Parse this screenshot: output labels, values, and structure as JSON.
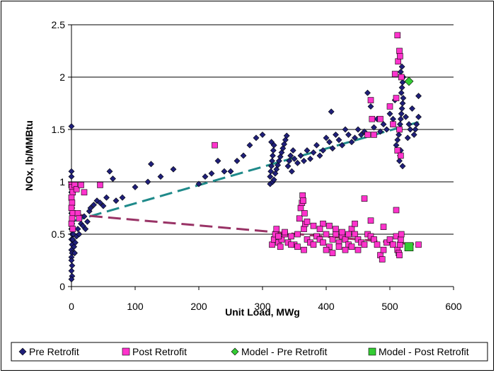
{
  "chart_data": {
    "type": "scatter",
    "title": "",
    "xlabel": "Unit Load, MWg",
    "ylabel": "NOx, lb/MMBtu",
    "xlim": [
      0,
      600
    ],
    "ylim": [
      0,
      2.5
    ],
    "x_ticks": [
      "0",
      "100",
      "200",
      "300",
      "400",
      "500",
      "600"
    ],
    "y_ticks": [
      "0",
      "0.5",
      "1",
      "1.5",
      "2",
      "2.5"
    ],
    "grid": "horizontal",
    "legend_position": "bottom",
    "series": [
      {
        "name": "Pre Retrofit",
        "marker": "diamond",
        "color": "#1f1f7a",
        "points": [
          [
            0,
            1.53
          ],
          [
            0,
            1.1
          ],
          [
            0,
            1.05
          ],
          [
            1,
            0.95
          ],
          [
            0,
            0.9
          ],
          [
            1,
            0.75
          ],
          [
            0,
            0.7
          ],
          [
            1,
            0.6
          ],
          [
            0,
            0.55
          ],
          [
            1,
            0.5
          ],
          [
            0,
            0.45
          ],
          [
            1,
            0.4
          ],
          [
            0,
            0.35
          ],
          [
            1,
            0.32
          ],
          [
            0,
            0.28
          ],
          [
            0,
            0.25
          ],
          [
            1,
            0.2
          ],
          [
            0,
            0.15
          ],
          [
            1,
            0.1
          ],
          [
            0,
            0.07
          ],
          [
            2,
            0.45
          ],
          [
            3,
            0.5
          ],
          [
            4,
            0.38
          ],
          [
            5,
            0.32
          ],
          [
            6,
            0.42
          ],
          [
            8,
            0.48
          ],
          [
            10,
            0.55
          ],
          [
            12,
            0.5
          ],
          [
            15,
            0.6
          ],
          [
            18,
            0.58
          ],
          [
            20,
            0.67
          ],
          [
            22,
            0.55
          ],
          [
            25,
            0.62
          ],
          [
            28,
            0.72
          ],
          [
            30,
            0.75
          ],
          [
            35,
            0.78
          ],
          [
            40,
            0.82
          ],
          [
            45,
            0.8
          ],
          [
            50,
            0.77
          ],
          [
            55,
            0.85
          ],
          [
            60,
            1.1
          ],
          [
            65,
            1.03
          ],
          [
            70,
            0.82
          ],
          [
            80,
            0.85
          ],
          [
            100,
            0.95
          ],
          [
            120,
            1.0
          ],
          [
            125,
            1.17
          ],
          [
            140,
            1.05
          ],
          [
            160,
            1.12
          ],
          [
            200,
            0.98
          ],
          [
            210,
            1.05
          ],
          [
            220,
            1.08
          ],
          [
            230,
            1.2
          ],
          [
            240,
            1.1
          ],
          [
            250,
            1.1
          ],
          [
            260,
            1.2
          ],
          [
            270,
            1.25
          ],
          [
            280,
            1.35
          ],
          [
            290,
            1.42
          ],
          [
            300,
            1.45
          ],
          [
            312,
            0.98
          ],
          [
            312,
            1.05
          ],
          [
            313,
            1.1
          ],
          [
            314,
            1.15
          ],
          [
            315,
            1.2
          ],
          [
            316,
            1.25
          ],
          [
            317,
            1.3
          ],
          [
            318,
            1.35
          ],
          [
            314,
            1.38
          ],
          [
            316,
            1.0
          ],
          [
            318,
            1.02
          ],
          [
            320,
            1.08
          ],
          [
            322,
            1.12
          ],
          [
            324,
            1.16
          ],
          [
            326,
            1.2
          ],
          [
            328,
            1.24
          ],
          [
            330,
            1.28
          ],
          [
            332,
            1.32
          ],
          [
            334,
            1.36
          ],
          [
            336,
            1.4
          ],
          [
            338,
            1.44
          ],
          [
            340,
            1.15
          ],
          [
            342,
            1.2
          ],
          [
            344,
            1.25
          ],
          [
            346,
            1.1
          ],
          [
            348,
            1.3
          ],
          [
            350,
            1.22
          ],
          [
            355,
            1.18
          ],
          [
            360,
            1.25
          ],
          [
            365,
            1.2
          ],
          [
            370,
            1.3
          ],
          [
            375,
            1.22
          ],
          [
            380,
            1.28
          ],
          [
            385,
            1.35
          ],
          [
            390,
            1.25
          ],
          [
            395,
            1.3
          ],
          [
            400,
            1.42
          ],
          [
            405,
            1.38
          ],
          [
            408,
            1.67
          ],
          [
            410,
            1.32
          ],
          [
            415,
            1.45
          ],
          [
            420,
            1.4
          ],
          [
            425,
            1.35
          ],
          [
            430,
            1.5
          ],
          [
            435,
            1.45
          ],
          [
            440,
            1.38
          ],
          [
            445,
            1.42
          ],
          [
            450,
            1.5
          ],
          [
            455,
            1.45
          ],
          [
            460,
            1.48
          ],
          [
            465,
            1.85
          ],
          [
            470,
            1.72
          ],
          [
            475,
            1.52
          ],
          [
            480,
            1.6
          ],
          [
            485,
            1.48
          ],
          [
            490,
            1.55
          ],
          [
            495,
            1.5
          ],
          [
            500,
            1.65
          ],
          [
            505,
            1.6
          ],
          [
            508,
            1.78
          ],
          [
            510,
            1.35
          ],
          [
            512,
            1.4
          ],
          [
            514,
            1.45
          ],
          [
            515,
            1.5
          ],
          [
            516,
            1.55
          ],
          [
            517,
            1.6
          ],
          [
            518,
            1.65
          ],
          [
            519,
            1.7
          ],
          [
            520,
            1.75
          ],
          [
            521,
            1.8
          ],
          [
            515,
            1.2
          ],
          [
            516,
            1.25
          ],
          [
            517,
            1.3
          ],
          [
            518,
            1.85
          ],
          [
            519,
            1.9
          ],
          [
            520,
            1.95
          ],
          [
            521,
            2.0
          ],
          [
            517,
            2.05
          ],
          [
            519,
            2.1
          ],
          [
            520,
            1.15
          ],
          [
            525,
            1.62
          ],
          [
            530,
            1.55
          ],
          [
            535,
            1.7
          ],
          [
            540,
            1.5
          ],
          [
            545,
            1.82
          ],
          [
            545,
            1.62
          ],
          [
            528,
            1.42
          ],
          [
            532,
            1.5
          ],
          [
            538,
            1.45
          ],
          [
            542,
            1.55
          ]
        ]
      },
      {
        "name": "Post Retrofit",
        "marker": "square",
        "color": "#ff33cc",
        "points": [
          [
            0,
            0.97
          ],
          [
            1,
            0.95
          ],
          [
            2,
            0.9
          ],
          [
            0,
            0.85
          ],
          [
            1,
            0.8
          ],
          [
            0,
            0.75
          ],
          [
            2,
            0.7
          ],
          [
            1,
            0.65
          ],
          [
            0,
            0.6
          ],
          [
            2,
            0.55
          ],
          [
            5,
            0.97
          ],
          [
            8,
            0.93
          ],
          [
            15,
            0.97
          ],
          [
            20,
            0.9
          ],
          [
            45,
            0.97
          ],
          [
            225,
            1.35
          ],
          [
            10,
            0.7
          ],
          [
            12,
            0.65
          ],
          [
            315,
            0.4
          ],
          [
            318,
            0.45
          ],
          [
            320,
            0.5
          ],
          [
            322,
            0.55
          ],
          [
            325,
            0.42
          ],
          [
            328,
            0.38
          ],
          [
            330,
            0.45
          ],
          [
            335,
            0.5
          ],
          [
            340,
            0.42
          ],
          [
            345,
            0.48
          ],
          [
            350,
            0.4
          ],
          [
            355,
            0.5
          ],
          [
            358,
            0.65
          ],
          [
            360,
            0.75
          ],
          [
            362,
            0.8
          ],
          [
            363,
            0.87
          ],
          [
            364,
            0.82
          ],
          [
            366,
            0.7
          ],
          [
            365,
            0.55
          ],
          [
            367,
            0.6
          ],
          [
            370,
            0.45
          ],
          [
            375,
            0.42
          ],
          [
            380,
            0.4
          ],
          [
            385,
            0.48
          ],
          [
            390,
            0.45
          ],
          [
            395,
            0.42
          ],
          [
            400,
            0.5
          ],
          [
            405,
            0.38
          ],
          [
            410,
            0.45
          ],
          [
            415,
            0.5
          ],
          [
            420,
            0.42
          ],
          [
            425,
            0.48
          ],
          [
            430,
            0.45
          ],
          [
            435,
            0.4
          ],
          [
            440,
            0.55
          ],
          [
            445,
            0.5
          ],
          [
            450,
            0.45
          ],
          [
            455,
            0.42
          ],
          [
            460,
            0.84
          ],
          [
            465,
            0.5
          ],
          [
            470,
            0.48
          ],
          [
            475,
            0.45
          ],
          [
            480,
            0.4
          ],
          [
            485,
            0.3
          ],
          [
            488,
            0.26
          ],
          [
            490,
            0.35
          ],
          [
            495,
            0.42
          ],
          [
            500,
            0.45
          ],
          [
            505,
            0.4
          ],
          [
            510,
            0.48
          ],
          [
            512,
            0.35
          ],
          [
            514,
            0.32
          ],
          [
            515,
            0.3
          ],
          [
            516,
            0.4
          ],
          [
            517,
            0.45
          ],
          [
            518,
            0.5
          ],
          [
            510,
            0.73
          ],
          [
            490,
            0.57
          ],
          [
            470,
            0.63
          ],
          [
            445,
            0.6
          ],
          [
            395,
            0.6
          ],
          [
            405,
            0.58
          ],
          [
            415,
            0.55
          ],
          [
            425,
            0.52
          ],
          [
            435,
            0.5
          ],
          [
            325,
            0.48
          ],
          [
            335,
            0.52
          ],
          [
            345,
            0.4
          ],
          [
            355,
            0.38
          ],
          [
            365,
            0.35
          ],
          [
            370,
            0.62
          ],
          [
            380,
            0.58
          ],
          [
            390,
            0.55
          ],
          [
            400,
            0.35
          ],
          [
            410,
            0.32
          ],
          [
            420,
            0.38
          ],
          [
            430,
            0.35
          ],
          [
            440,
            0.38
          ],
          [
            450,
            0.35
          ],
          [
            460,
            0.4
          ],
          [
            465,
            1.45
          ],
          [
            470,
            1.78
          ],
          [
            472,
            1.6
          ],
          [
            505,
            1.55
          ],
          [
            508,
            2.03
          ],
          [
            510,
            1.8
          ],
          [
            512,
            2.4
          ],
          [
            513,
            2.15
          ],
          [
            515,
            2.25
          ],
          [
            516,
            2.2
          ],
          [
            518,
            2.0
          ],
          [
            515,
            1.5
          ],
          [
            512,
            1.3
          ],
          [
            517,
            1.25
          ],
          [
            485,
            1.6
          ],
          [
            475,
            1.45
          ],
          [
            500,
            1.72
          ],
          [
            545,
            0.4
          ]
        ]
      },
      {
        "name": "Model - Pre Retrofit",
        "marker": "diamond",
        "color": "#33cc33",
        "points": [
          [
            530,
            1.96
          ]
        ]
      },
      {
        "name": "Model - Post Retrofit",
        "marker": "square",
        "color": "#33cc33",
        "points": [
          [
            530,
            0.38
          ]
        ]
      }
    ],
    "trendlines": [
      {
        "series": "Pre Retrofit",
        "color": "#1f8a8a",
        "style": "dashed",
        "x": [
          0,
          545
        ],
        "y": [
          0.62,
          1.57
        ]
      },
      {
        "series": "Post Retrofit",
        "color": "#993366",
        "style": "dashed",
        "x": [
          0,
          545
        ],
        "y": [
          0.69,
          0.4
        ]
      }
    ]
  }
}
